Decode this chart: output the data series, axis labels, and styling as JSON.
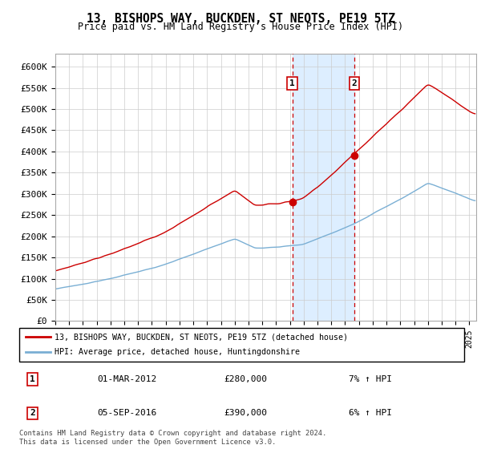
{
  "title": "13, BISHOPS WAY, BUCKDEN, ST NEOTS, PE19 5TZ",
  "subtitle": "Price paid vs. HM Land Registry's House Price Index (HPI)",
  "yticks": [
    0,
    50000,
    100000,
    150000,
    200000,
    250000,
    300000,
    350000,
    400000,
    450000,
    500000,
    550000,
    600000
  ],
  "ytick_labels": [
    "£0",
    "£50K",
    "£100K",
    "£150K",
    "£200K",
    "£250K",
    "£300K",
    "£350K",
    "£400K",
    "£450K",
    "£500K",
    "£550K",
    "£600K"
  ],
  "ylim": [
    0,
    630000
  ],
  "xlim_start": 1995.0,
  "xlim_end": 2025.5,
  "sale1_date": 2012.17,
  "sale1_price": 280000,
  "sale1_label": "1",
  "sale2_date": 2016.67,
  "sale2_price": 390000,
  "sale2_label": "2",
  "legend_line1": "13, BISHOPS WAY, BUCKDEN, ST NEOTS, PE19 5TZ (detached house)",
  "legend_line2": "HPI: Average price, detached house, Huntingdonshire",
  "table_row1": [
    "1",
    "01-MAR-2012",
    "£280,000",
    "7% ↑ HPI"
  ],
  "table_row2": [
    "2",
    "05-SEP-2016",
    "£390,000",
    "6% ↑ HPI"
  ],
  "footnote": "Contains HM Land Registry data © Crown copyright and database right 2024.\nThis data is licensed under the Open Government Licence v3.0.",
  "red_color": "#cc0000",
  "blue_color": "#7aafd4",
  "shade_color": "#ddeeff",
  "grid_color": "#cccccc"
}
